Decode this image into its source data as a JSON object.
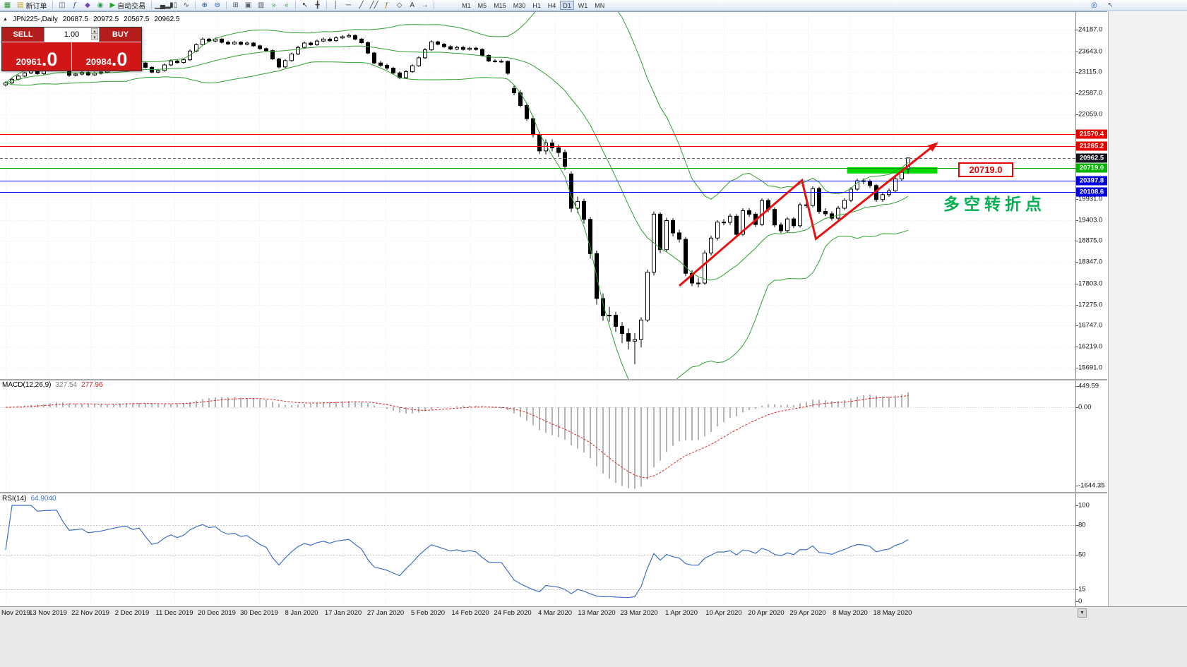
{
  "toolbar": {
    "items": [
      {
        "name": "new-chart-icon",
        "glyph": "▦",
        "color": "#2f8f2f"
      },
      {
        "name": "new-order-button",
        "glyph": "▤",
        "color": "#caa216",
        "label": "新订单",
        "button": true
      },
      {
        "name": "sep1",
        "sep": true
      },
      {
        "name": "charts-window-icon",
        "glyph": "◫",
        "color": "#55616e"
      },
      {
        "name": "indicators-icon",
        "glyph": "ƒ",
        "color": "#1c57ae"
      },
      {
        "name": "template-icon",
        "glyph": "◆",
        "color": "#7a44b8"
      },
      {
        "name": "market-watch-icon",
        "glyph": "◉",
        "color": "#2f9d55"
      },
      {
        "name": "autotrade-button",
        "glyph": "▶",
        "color": "#1fa41f",
        "label": "自动交易",
        "button": true
      },
      {
        "name": "sep2",
        "sep": true
      },
      {
        "name": "bar-chart-icon",
        "glyph": "▁▄▂",
        "color": "#3c3c3c"
      },
      {
        "name": "candlestick-chart-icon",
        "glyph": "▮▯",
        "color": "#3c3c3c"
      },
      {
        "name": "line-chart-icon",
        "glyph": "∿",
        "color": "#3c3c3c"
      },
      {
        "name": "sep3",
        "sep": true
      },
      {
        "name": "zoom-in-icon",
        "glyph": "⊕",
        "color": "#1c57ae"
      },
      {
        "name": "zoom-out-icon",
        "glyph": "⊖",
        "color": "#1c57ae"
      },
      {
        "name": "sep4",
        "sep": true
      },
      {
        "name": "tile-windows-icon",
        "glyph": "⊞",
        "color": "#55616e"
      },
      {
        "name": "cascade-windows-icon",
        "glyph": "▣",
        "color": "#55616e"
      },
      {
        "name": "arrange-windows-icon",
        "glyph": "▥",
        "color": "#55616e"
      },
      {
        "name": "auto-scroll-icon",
        "glyph": "»",
        "color": "#2f8f2f"
      },
      {
        "name": "chart-shift-icon",
        "glyph": "«",
        "color": "#2f8f2f"
      },
      {
        "name": "sep5",
        "sep": true
      },
      {
        "name": "cursor-icon",
        "glyph": "↖",
        "color": "#3c3c3c"
      },
      {
        "name": "crosshair-icon",
        "glyph": "╋",
        "color": "#3c3c3c"
      },
      {
        "name": "sep6",
        "sep": true
      },
      {
        "name": "vertical-line-icon",
        "glyph": "│",
        "color": "#3c3c3c"
      },
      {
        "name": "horizontal-line-icon",
        "glyph": "─",
        "color": "#3c3c3c"
      },
      {
        "name": "trendline-icon",
        "glyph": "╱",
        "color": "#3c3c3c"
      },
      {
        "name": "channel-icon",
        "glyph": "╱╱",
        "color": "#3c3c3c"
      },
      {
        "name": "fibonacci-icon",
        "glyph": "ƒ",
        "color": "#9a7410"
      },
      {
        "name": "shapes-icon",
        "glyph": "◇",
        "color": "#3c3c3c"
      },
      {
        "name": "text-icon",
        "glyph": "A",
        "color": "#3c3c3c"
      },
      {
        "name": "arrow-tool-icon",
        "glyph": "→",
        "color": "#3c3c3c"
      },
      {
        "name": "sep7",
        "sep": true
      }
    ],
    "timeframes": [
      "M1",
      "M5",
      "M15",
      "M30",
      "H1",
      "H4",
      "D1",
      "W1",
      "MN"
    ],
    "active_timeframe": "D1",
    "right_icons": [
      {
        "name": "search-icon",
        "glyph": "◎",
        "color": "#1c57ae"
      },
      {
        "name": "pointer-icon",
        "glyph": "↖",
        "color": "#55616e"
      }
    ]
  },
  "chart_header": {
    "marker": "▲",
    "symbol_period": "JPN225-,Daily",
    "open": "20687.5",
    "high": "20972.5",
    "low": "20567.5",
    "close": "20962.5"
  },
  "trade_panel": {
    "sell_label": "SELL",
    "buy_label": "BUY",
    "volume": "1.00",
    "spin_up": "▲",
    "spin_down": "▼",
    "sell_price_small": "20961",
    "sell_price_big": ".0",
    "buy_price_small": "20984",
    "buy_price_big": ".0"
  },
  "price_axis": {
    "ticks": [
      "24187.0",
      "23643.0",
      "23115.0",
      "22587.0",
      "22059.0",
      "19931.0",
      "19403.0",
      "18875.0",
      "18347.0",
      "17803.0",
      "17275.0",
      "16747.0",
      "16219.0",
      "15691.0"
    ]
  },
  "hlines": [
    {
      "label": "21570.4",
      "price": 21570.4,
      "color": "#ff0000",
      "bg": "#e80000",
      "bid": false
    },
    {
      "label": "21265.2",
      "price": 21265.2,
      "color": "#ff0000",
      "bg": "#e80000",
      "bid": false
    },
    {
      "label": "20962.5",
      "price": 20962.5,
      "color": "#666666",
      "bg": "#14141e",
      "bid": true
    },
    {
      "label": "20719.0",
      "price": 20719.0,
      "color": "#00a000",
      "bg": "#00b400",
      "bid": false
    },
    {
      "label": "20397.8",
      "price": 20397.8,
      "color": "#0000ff",
      "bg": "#0000e0",
      "bid": false
    },
    {
      "label": "20108.6",
      "price": 20108.6,
      "color": "#0000ff",
      "bg": "#0000e0",
      "bid": false
    }
  ],
  "time_axis": {
    "labels": [
      "Nov 2019",
      "13 Nov 2019",
      "22 Nov 2019",
      "2 Dec 2019",
      "11 Dec 2019",
      "20 Dec 2019",
      "30 Dec 2019",
      "8 Jan 2020",
      "17 Jan 2020",
      "27 Jan 2020",
      "5 Feb 2020",
      "14 Feb 2020",
      "24 Feb 2020",
      "4 Mar 2020",
      "13 Mar 2020",
      "23 Mar 2020",
      "1 Apr 2020",
      "10 Apr 2020",
      "20 Apr 2020",
      "29 Apr 2020",
      "8 May 2020",
      "18 May 2020"
    ]
  },
  "macd": {
    "name": "MACD(12,26,9)",
    "value_main": "327.54",
    "value_signal": "277.96",
    "axis": [
      "449.59",
      "0.00",
      "-1644.35"
    ],
    "fast": 12,
    "slow": 26,
    "signal": 9
  },
  "rsi": {
    "name": "RSI(14)",
    "value": "64.9040",
    "axis": [
      "100",
      "80",
      "50",
      "15",
      "0"
    ],
    "levels": [
      80,
      50,
      15
    ],
    "period": 14
  },
  "annotations": {
    "support_zone": {
      "start_index": 132.4,
      "end_index": 146.6,
      "top_price": 20730,
      "bottom_price": 20572,
      "color": "#00d800"
    },
    "trend_arrow": {
      "color": "#e81010",
      "points": [
        [
          106,
          17750
        ],
        [
          125.3,
          20400
        ],
        [
          127.5,
          18930
        ],
        [
          146.5,
          21330
        ]
      ]
    },
    "price_callout": {
      "text": "20719.0",
      "color": "#e80000"
    },
    "turning_point_label": {
      "text": "多空转折点",
      "color": "#00b050"
    },
    "scroll_glyph": "▼"
  },
  "chart_data": {
    "type": "candlestick",
    "symbol": "JPN225",
    "period": "Daily",
    "view_price_range": [
      15560,
      24650
    ],
    "indicators": [
      {
        "type": "bollinger",
        "period": 20,
        "deviation": 2,
        "color": "#2fa12f"
      },
      {
        "type": "macd",
        "fast": 12,
        "slow": 26,
        "signal": 9,
        "current_macd": 327.54,
        "current_signal": 277.96
      },
      {
        "type": "rsi",
        "period": 14,
        "current": 64.904
      }
    ],
    "candles": [
      [
        22800,
        22890,
        22760,
        22850
      ],
      [
        22850,
        22970,
        22820,
        22940
      ],
      [
        22940,
        23050,
        22910,
        23020
      ],
      [
        23020,
        23130,
        22990,
        23100
      ],
      [
        23100,
        23190,
        23070,
        23150
      ],
      [
        23150,
        23180,
        23050,
        23080
      ],
      [
        23080,
        23220,
        23050,
        23190
      ],
      [
        23190,
        23300,
        23160,
        23260
      ],
      [
        23260,
        23360,
        23230,
        23330
      ],
      [
        23330,
        23360,
        23150,
        23180
      ],
      [
        23180,
        23210,
        23000,
        23040
      ],
      [
        23040,
        23110,
        23010,
        23070
      ],
      [
        23070,
        23150,
        23040,
        23110
      ],
      [
        23110,
        23140,
        23020,
        23050
      ],
      [
        23050,
        23130,
        23020,
        23090
      ],
      [
        23090,
        23160,
        23060,
        23120
      ],
      [
        23120,
        23210,
        23090,
        23180
      ],
      [
        23180,
        23280,
        23150,
        23240
      ],
      [
        23240,
        23330,
        23210,
        23300
      ],
      [
        23300,
        23370,
        23270,
        23330
      ],
      [
        23330,
        23360,
        23260,
        23290
      ],
      [
        23290,
        23390,
        23260,
        23350
      ],
      [
        23350,
        23380,
        23210,
        23240
      ],
      [
        23240,
        23270,
        23090,
        23120
      ],
      [
        23120,
        23200,
        23090,
        23160
      ],
      [
        23160,
        23340,
        23130,
        23300
      ],
      [
        23300,
        23440,
        23270,
        23400
      ],
      [
        23400,
        23440,
        23330,
        23360
      ],
      [
        23360,
        23470,
        23330,
        23430
      ],
      [
        23430,
        23690,
        23400,
        23650
      ],
      [
        23650,
        23850,
        23620,
        23810
      ],
      [
        23810,
        23990,
        23780,
        23950
      ],
      [
        23950,
        23980,
        23870,
        23900
      ],
      [
        23900,
        23990,
        23870,
        23950
      ],
      [
        23950,
        23980,
        23840,
        23870
      ],
      [
        23870,
        23910,
        23800,
        23830
      ],
      [
        23830,
        23910,
        23800,
        23870
      ],
      [
        23870,
        23900,
        23790,
        23820
      ],
      [
        23820,
        23890,
        23790,
        23850
      ],
      [
        23850,
        23880,
        23750,
        23780
      ],
      [
        23780,
        23810,
        23680,
        23710
      ],
      [
        23710,
        23740,
        23630,
        23660
      ],
      [
        23660,
        23690,
        23420,
        23450
      ],
      [
        23450,
        23480,
        23210,
        23250
      ],
      [
        23250,
        23450,
        23220,
        23410
      ],
      [
        23410,
        23610,
        23380,
        23575
      ],
      [
        23575,
        23780,
        23550,
        23740
      ],
      [
        23740,
        23890,
        23710,
        23850
      ],
      [
        23850,
        23890,
        23780,
        23810
      ],
      [
        23810,
        23940,
        23780,
        23900
      ],
      [
        23900,
        23990,
        23870,
        23950
      ],
      [
        23950,
        23990,
        23880,
        23910
      ],
      [
        23910,
        24020,
        23880,
        23980
      ],
      [
        23980,
        24050,
        23950,
        24010
      ],
      [
        24010,
        24090,
        23980,
        24040
      ],
      [
        24040,
        24070,
        23920,
        23950
      ],
      [
        23950,
        23980,
        23830,
        23860
      ],
      [
        23860,
        23890,
        23570,
        23600
      ],
      [
        23600,
        23630,
        23320,
        23350
      ],
      [
        23350,
        23400,
        23250,
        23290
      ],
      [
        23290,
        23330,
        23180,
        23220
      ],
      [
        23220,
        23250,
        23060,
        23100
      ],
      [
        23100,
        23140,
        22940,
        22980
      ],
      [
        22980,
        23170,
        22950,
        23130
      ],
      [
        23130,
        23320,
        23100,
        23280
      ],
      [
        23280,
        23520,
        23250,
        23480
      ],
      [
        23480,
        23720,
        23450,
        23680
      ],
      [
        23680,
        23920,
        23650,
        23880
      ],
      [
        23880,
        23910,
        23790,
        23820
      ],
      [
        23820,
        23850,
        23730,
        23760
      ],
      [
        23760,
        23800,
        23670,
        23700
      ],
      [
        23700,
        23780,
        23670,
        23740
      ],
      [
        23740,
        23780,
        23660,
        23690
      ],
      [
        23690,
        23760,
        23660,
        23720
      ],
      [
        23720,
        23760,
        23660,
        23690
      ],
      [
        23690,
        23720,
        23510,
        23540
      ],
      [
        23540,
        23570,
        23370,
        23400
      ],
      [
        23400,
        23450,
        23360,
        23390
      ],
      [
        23390,
        23440,
        23350,
        23390
      ],
      [
        23390,
        23410,
        23050,
        23090
      ],
      [
        22710,
        22780,
        22540,
        22600
      ],
      [
        22600,
        22670,
        22230,
        22280
      ],
      [
        22280,
        22350,
        21890,
        21950
      ],
      [
        21950,
        22020,
        21480,
        21550
      ],
      [
        21550,
        21620,
        21060,
        21140
      ],
      [
        21140,
        21430,
        21050,
        21340
      ],
      [
        21340,
        21430,
        21130,
        21220
      ],
      [
        21220,
        21300,
        20990,
        21100
      ],
      [
        21100,
        21170,
        20660,
        20750
      ],
      [
        20560,
        20620,
        19600,
        19700
      ],
      [
        19700,
        19990,
        19580,
        19870
      ],
      [
        19870,
        19940,
        19310,
        19420
      ],
      [
        19420,
        19480,
        18430,
        18560
      ],
      [
        18560,
        18640,
        17280,
        17430
      ],
      [
        17430,
        17560,
        16870,
        17000
      ],
      [
        17000,
        17220,
        16850,
        17010
      ],
      [
        17010,
        17100,
        16590,
        16730
      ],
      [
        16730,
        16840,
        16310,
        16550
      ],
      [
        16550,
        16680,
        16150,
        16360
      ],
      [
        16360,
        16560,
        15780,
        16400
      ],
      [
        16400,
        16960,
        16200,
        16890
      ],
      [
        16890,
        18160,
        16840,
        18090
      ],
      [
        18090,
        19620,
        18010,
        19550
      ],
      [
        19550,
        19600,
        18570,
        18660
      ],
      [
        18660,
        19460,
        18600,
        19390
      ],
      [
        19390,
        19450,
        18990,
        19080
      ],
      [
        19080,
        19160,
        18840,
        18920
      ],
      [
        18920,
        18980,
        17990,
        18065
      ],
      [
        18065,
        18140,
        17740,
        17820
      ],
      [
        17820,
        17950,
        17710,
        17820
      ],
      [
        17820,
        18640,
        17770,
        18575
      ],
      [
        18575,
        19010,
        18510,
        18950
      ],
      [
        18950,
        19400,
        18890,
        19350
      ],
      [
        19350,
        19430,
        19270,
        19345
      ],
      [
        19345,
        19560,
        19280,
        19500
      ],
      [
        19500,
        19550,
        18970,
        19045
      ],
      [
        19045,
        19700,
        19000,
        19640
      ],
      [
        19640,
        19700,
        19480,
        19550
      ],
      [
        19550,
        19600,
        19230,
        19290
      ],
      [
        19290,
        19950,
        19250,
        19895
      ],
      [
        19895,
        19940,
        19600,
        19670
      ],
      [
        19670,
        19720,
        19220,
        19280
      ],
      [
        19280,
        19340,
        19070,
        19135
      ],
      [
        19135,
        19480,
        19090,
        19430
      ],
      [
        19430,
        19480,
        19200,
        19260
      ],
      [
        19260,
        19840,
        19210,
        19785
      ],
      [
        19785,
        19850,
        19700,
        19770
      ],
      [
        19770,
        20250,
        19720,
        20195
      ],
      [
        20195,
        20240,
        19560,
        19620
      ],
      [
        19620,
        19700,
        19500,
        19560
      ],
      [
        19560,
        19620,
        19390,
        19450
      ],
      [
        19450,
        19760,
        19400,
        19700
      ],
      [
        19700,
        19950,
        19650,
        19900
      ],
      [
        19900,
        20230,
        19850,
        20180
      ],
      [
        20180,
        20440,
        20130,
        20390
      ],
      [
        20390,
        20450,
        20300,
        20370
      ],
      [
        20370,
        20420,
        20210,
        20270
      ],
      [
        20270,
        20310,
        19860,
        19915
      ],
      [
        19915,
        20100,
        19860,
        20040
      ],
      [
        20040,
        20190,
        19990,
        20135
      ],
      [
        20135,
        20480,
        20090,
        20435
      ],
      [
        20435,
        20650,
        20380,
        20600
      ],
      [
        20687.5,
        20972.5,
        20567.5,
        20962.5
      ]
    ]
  }
}
